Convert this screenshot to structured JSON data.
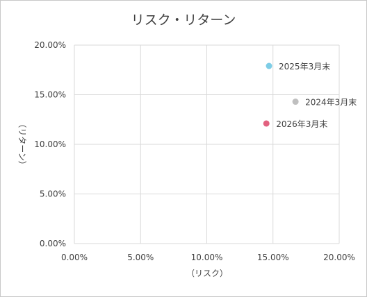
{
  "chart_data": {
    "type": "scatter",
    "title": "リスク・リターン",
    "xlabel": "（リスク）",
    "ylabel": "（リターン）",
    "xlim": [
      0,
      20
    ],
    "ylim": [
      0,
      20
    ],
    "x_ticks": [
      0,
      5,
      10,
      15,
      20
    ],
    "y_ticks": [
      0,
      5,
      10,
      15,
      20
    ],
    "x_tick_labels": [
      "0.00%",
      "5.00%",
      "10.00%",
      "15.00%",
      "20.00%"
    ],
    "y_tick_labels": [
      "0.00%",
      "5.00%",
      "10.00%",
      "15.00%",
      "20.00%"
    ],
    "grid": true,
    "legend": "none",
    "points": [
      {
        "label": "2025年3月末",
        "x": 14.7,
        "y": 17.9,
        "color": "#7ecde6"
      },
      {
        "label": "2024年3月末",
        "x": 16.7,
        "y": 14.3,
        "color": "#bfbfbf"
      },
      {
        "label": "2026年3月末",
        "x": 14.5,
        "y": 12.1,
        "color": "#e2617f"
      }
    ]
  }
}
